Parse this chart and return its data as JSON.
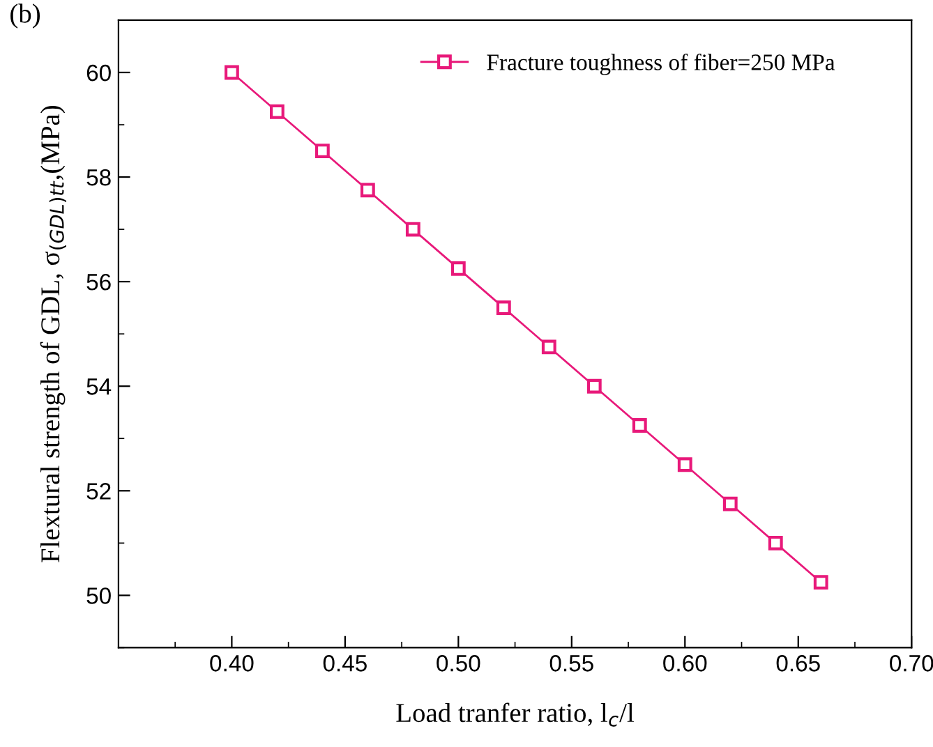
{
  "chart_data": {
    "type": "line",
    "title": "(b)",
    "xlabel": "Load tranfer ratio, l$_{c}$/l",
    "ylabel": "Flextural strength of GDL, σ$_{(GDL)tt}$,(MPa)",
    "x": [
      0.4,
      0.42,
      0.44,
      0.46,
      0.48,
      0.5,
      0.52,
      0.54,
      0.56,
      0.58,
      0.6,
      0.62,
      0.64,
      0.66
    ],
    "series": [
      {
        "name": "Fracture toughness of fiber=250 MPa",
        "color": "#e8197a",
        "values": [
          60,
          59.25,
          58.5,
          57.75,
          57,
          56.25,
          55.5,
          54.75,
          54,
          53.25,
          52.5,
          51.75,
          51,
          50.25
        ]
      }
    ],
    "xlim": [
      0.35,
      0.7
    ],
    "xticks": [
      {
        "value": 0.4,
        "label": "0.40"
      },
      {
        "value": 0.45,
        "label": "0.45"
      },
      {
        "value": 0.5,
        "label": "0.50"
      },
      {
        "value": 0.55,
        "label": "0.55"
      },
      {
        "value": 0.6,
        "label": "0.60"
      },
      {
        "value": 0.65,
        "label": "0.65"
      },
      {
        "value": 0.7,
        "label": "0.70"
      }
    ],
    "ylim": [
      49,
      61
    ],
    "yticks": [
      50,
      52,
      54,
      56,
      58,
      60
    ],
    "marker": "square",
    "line_style": "solid",
    "legend": "top right",
    "grid": false
  }
}
